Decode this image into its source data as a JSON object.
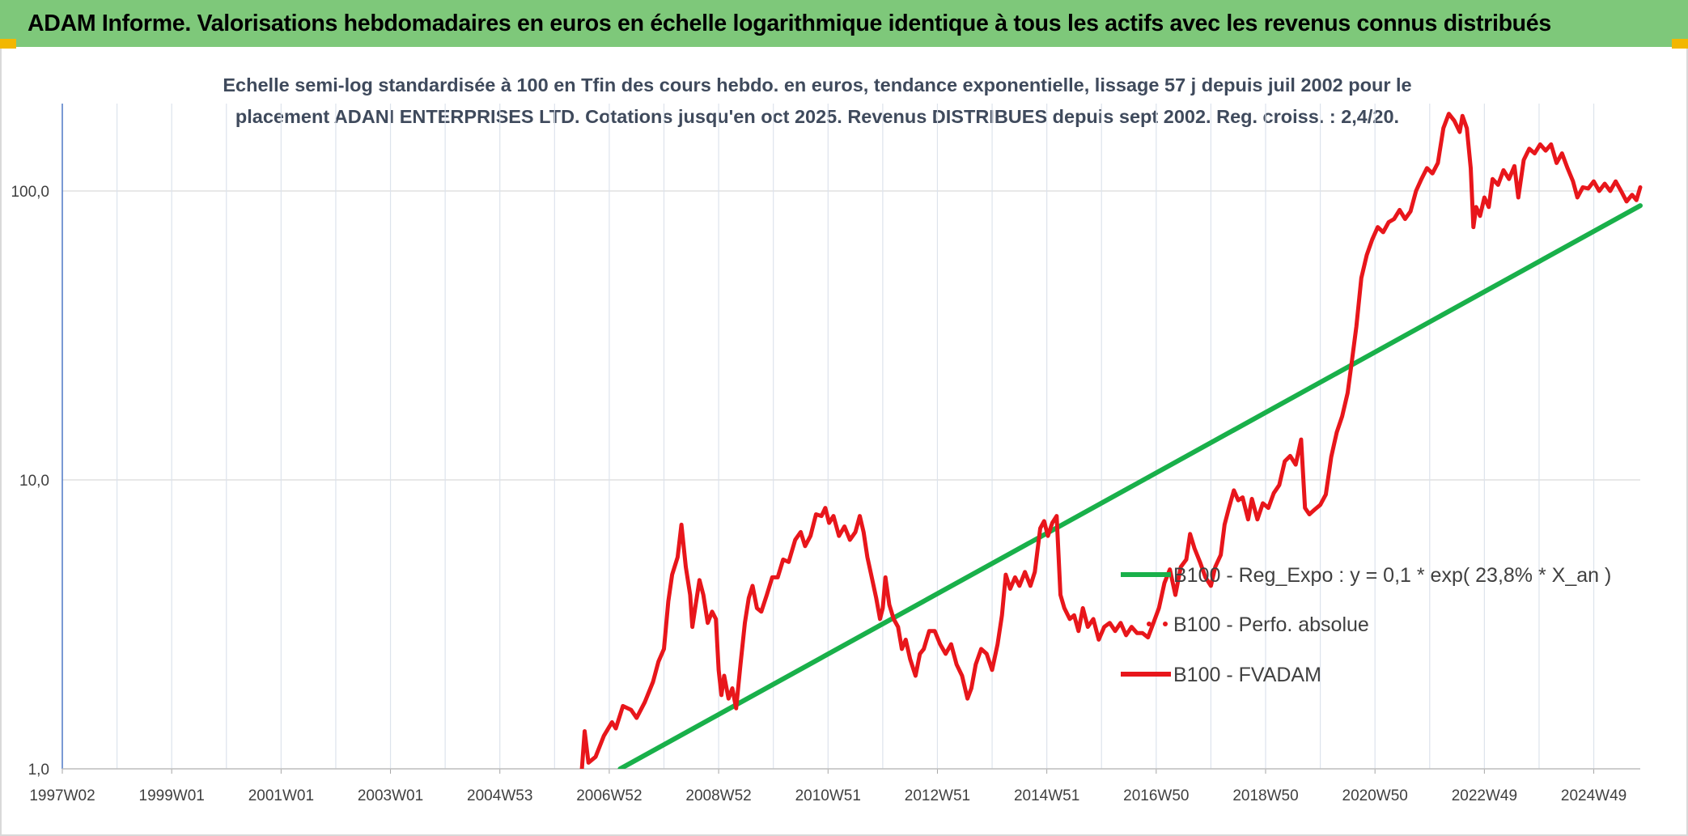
{
  "header": {
    "title": "ADAM Informe. Valorisations hebdomadaires en euros en échelle logarithmique identique à tous les actifs avec les revenus connus distribués"
  },
  "chart_data": {
    "type": "line",
    "subtitle_lines": [
      "Echelle semi-log standardisée à 100 en Tfin des cours hebdo. en euros, tendance exponentielle, lissage 57 j depuis juil 2002 pour le",
      "placement ADANI ENTERPRISES LTD. Cotations jusqu'en oct 2025. Revenus DISTRIBUES depuis sept 2002. Reg. croiss. : 2,4/20."
    ],
    "y_scale": "log",
    "ylim": [
      1,
      200
    ],
    "y_ticks": [
      {
        "value": 1,
        "label": "1,0"
      },
      {
        "value": 10,
        "label": "10,0"
      },
      {
        "value": 100,
        "label": "100,0"
      }
    ],
    "xlim": [
      1997.0,
      2025.85
    ],
    "x_ticks": [
      {
        "value": 1997.0,
        "label": "1997W02"
      },
      {
        "value": 1999.0,
        "label": "1999W01"
      },
      {
        "value": 2001.0,
        "label": "2001W01"
      },
      {
        "value": 2003.0,
        "label": "2003W01"
      },
      {
        "value": 2005.0,
        "label": "2004W53"
      },
      {
        "value": 2007.0,
        "label": "2006W52"
      },
      {
        "value": 2009.0,
        "label": "2008W52"
      },
      {
        "value": 2011.0,
        "label": "2010W51"
      },
      {
        "value": 2013.0,
        "label": "2012W51"
      },
      {
        "value": 2015.0,
        "label": "2014W51"
      },
      {
        "value": 2017.0,
        "label": "2016W50"
      },
      {
        "value": 2019.0,
        "label": "2018W50"
      },
      {
        "value": 2021.0,
        "label": "2020W50"
      },
      {
        "value": 2023.0,
        "label": "2022W49"
      },
      {
        "value": 2025.0,
        "label": "2024W49"
      }
    ],
    "grid": true,
    "legend_position": "right",
    "series": [
      {
        "name": "B100 - Reg_Expo : y = 0,1 * exp( 23,8% *  X_an )",
        "color": "#19b04a",
        "style": "solid",
        "points": [
          [
            2007.2,
            1.0
          ],
          [
            2025.85,
            89
          ]
        ]
      },
      {
        "name": "B100 - Perfo. absolue",
        "color": "#e8161b",
        "style": "dotted",
        "points": []
      },
      {
        "name": "B100 - FVADAM",
        "color": "#e8161b",
        "style": "solid",
        "points": [
          [
            2006.5,
            1.0
          ],
          [
            2006.55,
            1.35
          ],
          [
            2006.62,
            1.05
          ],
          [
            2006.75,
            1.1
          ],
          [
            2006.9,
            1.3
          ],
          [
            2007.05,
            1.45
          ],
          [
            2007.12,
            1.38
          ],
          [
            2007.25,
            1.65
          ],
          [
            2007.4,
            1.6
          ],
          [
            2007.5,
            1.5
          ],
          [
            2007.65,
            1.7
          ],
          [
            2007.8,
            2.0
          ],
          [
            2007.9,
            2.35
          ],
          [
            2008.0,
            2.6
          ],
          [
            2008.08,
            3.8
          ],
          [
            2008.15,
            4.7
          ],
          [
            2008.25,
            5.4
          ],
          [
            2008.32,
            7.0
          ],
          [
            2008.4,
            5.0
          ],
          [
            2008.48,
            4.0
          ],
          [
            2008.52,
            3.1
          ],
          [
            2008.58,
            3.7
          ],
          [
            2008.65,
            4.5
          ],
          [
            2008.72,
            4.0
          ],
          [
            2008.8,
            3.2
          ],
          [
            2008.88,
            3.5
          ],
          [
            2008.95,
            3.3
          ],
          [
            2009.0,
            2.2
          ],
          [
            2009.05,
            1.8
          ],
          [
            2009.1,
            2.1
          ],
          [
            2009.18,
            1.75
          ],
          [
            2009.25,
            1.9
          ],
          [
            2009.32,
            1.62
          ],
          [
            2009.4,
            2.3
          ],
          [
            2009.48,
            3.2
          ],
          [
            2009.55,
            3.9
          ],
          [
            2009.62,
            4.3
          ],
          [
            2009.7,
            3.6
          ],
          [
            2009.78,
            3.5
          ],
          [
            2009.88,
            4.0
          ],
          [
            2009.98,
            4.6
          ],
          [
            2010.08,
            4.6
          ],
          [
            2010.18,
            5.3
          ],
          [
            2010.28,
            5.2
          ],
          [
            2010.4,
            6.2
          ],
          [
            2010.5,
            6.6
          ],
          [
            2010.58,
            5.9
          ],
          [
            2010.68,
            6.4
          ],
          [
            2010.78,
            7.6
          ],
          [
            2010.88,
            7.5
          ],
          [
            2010.95,
            8.0
          ],
          [
            2011.02,
            7.1
          ],
          [
            2011.1,
            7.5
          ],
          [
            2011.2,
            6.4
          ],
          [
            2011.3,
            6.9
          ],
          [
            2011.4,
            6.2
          ],
          [
            2011.5,
            6.6
          ],
          [
            2011.58,
            7.5
          ],
          [
            2011.65,
            6.6
          ],
          [
            2011.72,
            5.4
          ],
          [
            2011.8,
            4.6
          ],
          [
            2011.88,
            3.9
          ],
          [
            2011.95,
            3.3
          ],
          [
            2012.0,
            3.6
          ],
          [
            2012.05,
            4.6
          ],
          [
            2012.12,
            3.7
          ],
          [
            2012.2,
            3.3
          ],
          [
            2012.28,
            3.1
          ],
          [
            2012.35,
            2.6
          ],
          [
            2012.42,
            2.8
          ],
          [
            2012.5,
            2.4
          ],
          [
            2012.6,
            2.1
          ],
          [
            2012.68,
            2.5
          ],
          [
            2012.75,
            2.6
          ],
          [
            2012.85,
            3.0
          ],
          [
            2012.95,
            3.0
          ],
          [
            2013.05,
            2.7
          ],
          [
            2013.15,
            2.5
          ],
          [
            2013.25,
            2.7
          ],
          [
            2013.35,
            2.3
          ],
          [
            2013.45,
            2.1
          ],
          [
            2013.55,
            1.75
          ],
          [
            2013.62,
            1.9
          ],
          [
            2013.7,
            2.3
          ],
          [
            2013.8,
            2.6
          ],
          [
            2013.9,
            2.5
          ],
          [
            2014.0,
            2.2
          ],
          [
            2014.1,
            2.7
          ],
          [
            2014.18,
            3.4
          ],
          [
            2014.25,
            4.7
          ],
          [
            2014.33,
            4.2
          ],
          [
            2014.42,
            4.6
          ],
          [
            2014.5,
            4.3
          ],
          [
            2014.6,
            4.8
          ],
          [
            2014.7,
            4.3
          ],
          [
            2014.78,
            4.8
          ],
          [
            2014.88,
            6.8
          ],
          [
            2014.95,
            7.2
          ],
          [
            2015.02,
            6.4
          ],
          [
            2015.1,
            7.1
          ],
          [
            2015.18,
            7.5
          ],
          [
            2015.25,
            4.0
          ],
          [
            2015.32,
            3.6
          ],
          [
            2015.42,
            3.3
          ],
          [
            2015.5,
            3.4
          ],
          [
            2015.58,
            3.0
          ],
          [
            2015.66,
            3.6
          ],
          [
            2015.75,
            3.1
          ],
          [
            2015.85,
            3.3
          ],
          [
            2015.95,
            2.8
          ],
          [
            2016.05,
            3.1
          ],
          [
            2016.15,
            3.2
          ],
          [
            2016.25,
            3.0
          ],
          [
            2016.35,
            3.2
          ],
          [
            2016.45,
            2.9
          ],
          [
            2016.55,
            3.1
          ],
          [
            2016.65,
            2.95
          ],
          [
            2016.75,
            2.95
          ],
          [
            2016.85,
            2.85
          ],
          [
            2016.95,
            3.2
          ],
          [
            2017.05,
            3.6
          ],
          [
            2017.15,
            4.4
          ],
          [
            2017.25,
            4.9
          ],
          [
            2017.35,
            4.0
          ],
          [
            2017.45,
            5.0
          ],
          [
            2017.55,
            5.3
          ],
          [
            2017.62,
            6.5
          ],
          [
            2017.7,
            5.8
          ],
          [
            2017.8,
            5.2
          ],
          [
            2017.9,
            4.6
          ],
          [
            2018.0,
            4.3
          ],
          [
            2018.08,
            5.0
          ],
          [
            2018.18,
            5.5
          ],
          [
            2018.25,
            7.0
          ],
          [
            2018.33,
            8.0
          ],
          [
            2018.42,
            9.2
          ],
          [
            2018.5,
            8.5
          ],
          [
            2018.58,
            8.7
          ],
          [
            2018.68,
            7.3
          ],
          [
            2018.75,
            8.6
          ],
          [
            2018.85,
            7.3
          ],
          [
            2018.95,
            8.3
          ],
          [
            2019.05,
            8.0
          ],
          [
            2019.15,
            9.0
          ],
          [
            2019.25,
            9.6
          ],
          [
            2019.35,
            11.6
          ],
          [
            2019.45,
            12.1
          ],
          [
            2019.55,
            11.3
          ],
          [
            2019.65,
            13.8
          ],
          [
            2019.72,
            8.0
          ],
          [
            2019.8,
            7.6
          ],
          [
            2019.9,
            7.9
          ],
          [
            2020.0,
            8.2
          ],
          [
            2020.1,
            8.9
          ],
          [
            2020.2,
            12.0
          ],
          [
            2020.3,
            14.6
          ],
          [
            2020.4,
            16.6
          ],
          [
            2020.5,
            20.0
          ],
          [
            2020.58,
            26.0
          ],
          [
            2020.66,
            34.0
          ],
          [
            2020.75,
            50.0
          ],
          [
            2020.85,
            60.0
          ],
          [
            2020.95,
            68.0
          ],
          [
            2021.05,
            75.0
          ],
          [
            2021.15,
            72.0
          ],
          [
            2021.25,
            78.0
          ],
          [
            2021.35,
            80.0
          ],
          [
            2021.45,
            86.0
          ],
          [
            2021.55,
            80.0
          ],
          [
            2021.65,
            85.0
          ],
          [
            2021.75,
            100.0
          ],
          [
            2021.85,
            110.0
          ],
          [
            2021.95,
            120.0
          ],
          [
            2022.05,
            115.0
          ],
          [
            2022.15,
            125.0
          ],
          [
            2022.25,
            165.0
          ],
          [
            2022.35,
            185.0
          ],
          [
            2022.45,
            175.0
          ],
          [
            2022.55,
            160.0
          ],
          [
            2022.6,
            182.0
          ],
          [
            2022.68,
            165.0
          ],
          [
            2022.75,
            120.0
          ],
          [
            2022.8,
            75.0
          ],
          [
            2022.85,
            88.0
          ],
          [
            2022.92,
            82.0
          ],
          [
            2023.0,
            95.0
          ],
          [
            2023.08,
            88.0
          ],
          [
            2023.15,
            110.0
          ],
          [
            2023.25,
            105.0
          ],
          [
            2023.35,
            118.0
          ],
          [
            2023.45,
            110.0
          ],
          [
            2023.55,
            122.0
          ],
          [
            2023.62,
            95.0
          ],
          [
            2023.72,
            128.0
          ],
          [
            2023.82,
            140.0
          ],
          [
            2023.92,
            135.0
          ],
          [
            2024.02,
            145.0
          ],
          [
            2024.12,
            138.0
          ],
          [
            2024.22,
            145.0
          ],
          [
            2024.32,
            125.0
          ],
          [
            2024.42,
            135.0
          ],
          [
            2024.52,
            120.0
          ],
          [
            2024.62,
            108.0
          ],
          [
            2024.7,
            95.0
          ],
          [
            2024.8,
            103.0
          ],
          [
            2024.9,
            102.0
          ],
          [
            2025.0,
            108.0
          ],
          [
            2025.1,
            100.0
          ],
          [
            2025.2,
            106.0
          ],
          [
            2025.3,
            100.0
          ],
          [
            2025.4,
            108.0
          ],
          [
            2025.5,
            100.0
          ],
          [
            2025.6,
            92.0
          ],
          [
            2025.7,
            97.0
          ],
          [
            2025.78,
            93.0
          ],
          [
            2025.85,
            103.0
          ]
        ]
      }
    ]
  }
}
